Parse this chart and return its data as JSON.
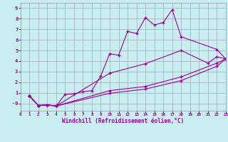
{
  "xlabel": "Windchill (Refroidissement éolien,°C)",
  "background_color": "#c8eef0",
  "line_color": "#990099",
  "grid_color": "#9999aa",
  "xlim": [
    0,
    23
  ],
  "ylim": [
    -0.7,
    9.5
  ],
  "xticks": [
    0,
    1,
    2,
    3,
    4,
    5,
    6,
    7,
    8,
    9,
    10,
    11,
    12,
    13,
    14,
    15,
    16,
    17,
    18,
    19,
    20,
    21,
    22,
    23
  ],
  "yticks": [
    0,
    1,
    2,
    3,
    4,
    5,
    6,
    7,
    8,
    9
  ],
  "ytick_labels": [
    "-0",
    "1",
    "2",
    "3",
    "4",
    "5",
    "6",
    "7",
    "8",
    "9"
  ],
  "series": [
    {
      "x": [
        1,
        2,
        3,
        4,
        5,
        6,
        7,
        8,
        9,
        10,
        11,
        12,
        13,
        14,
        15,
        16,
        17,
        18,
        22,
        23
      ],
      "y": [
        0.7,
        -0.2,
        -0.15,
        -0.25,
        0.85,
        0.9,
        1.1,
        1.2,
        2.6,
        4.7,
        4.55,
        6.8,
        6.6,
        8.1,
        7.4,
        7.65,
        8.85,
        6.3,
        5.1,
        4.2
      ]
    },
    {
      "x": [
        1,
        2,
        3,
        4,
        10,
        14,
        18,
        21,
        22,
        23
      ],
      "y": [
        0.7,
        -0.2,
        -0.15,
        -0.25,
        2.85,
        3.75,
        5.0,
        3.8,
        4.4,
        4.2
      ]
    },
    {
      "x": [
        1,
        2,
        3,
        4,
        10,
        14,
        18,
        22,
        23
      ],
      "y": [
        0.7,
        -0.2,
        -0.15,
        -0.25,
        1.2,
        1.6,
        2.5,
        3.8,
        4.2
      ]
    },
    {
      "x": [
        1,
        2,
        3,
        4,
        10,
        14,
        18,
        22,
        23
      ],
      "y": [
        0.7,
        -0.2,
        -0.15,
        -0.25,
        0.95,
        1.35,
        2.15,
        3.5,
        4.2
      ]
    }
  ]
}
